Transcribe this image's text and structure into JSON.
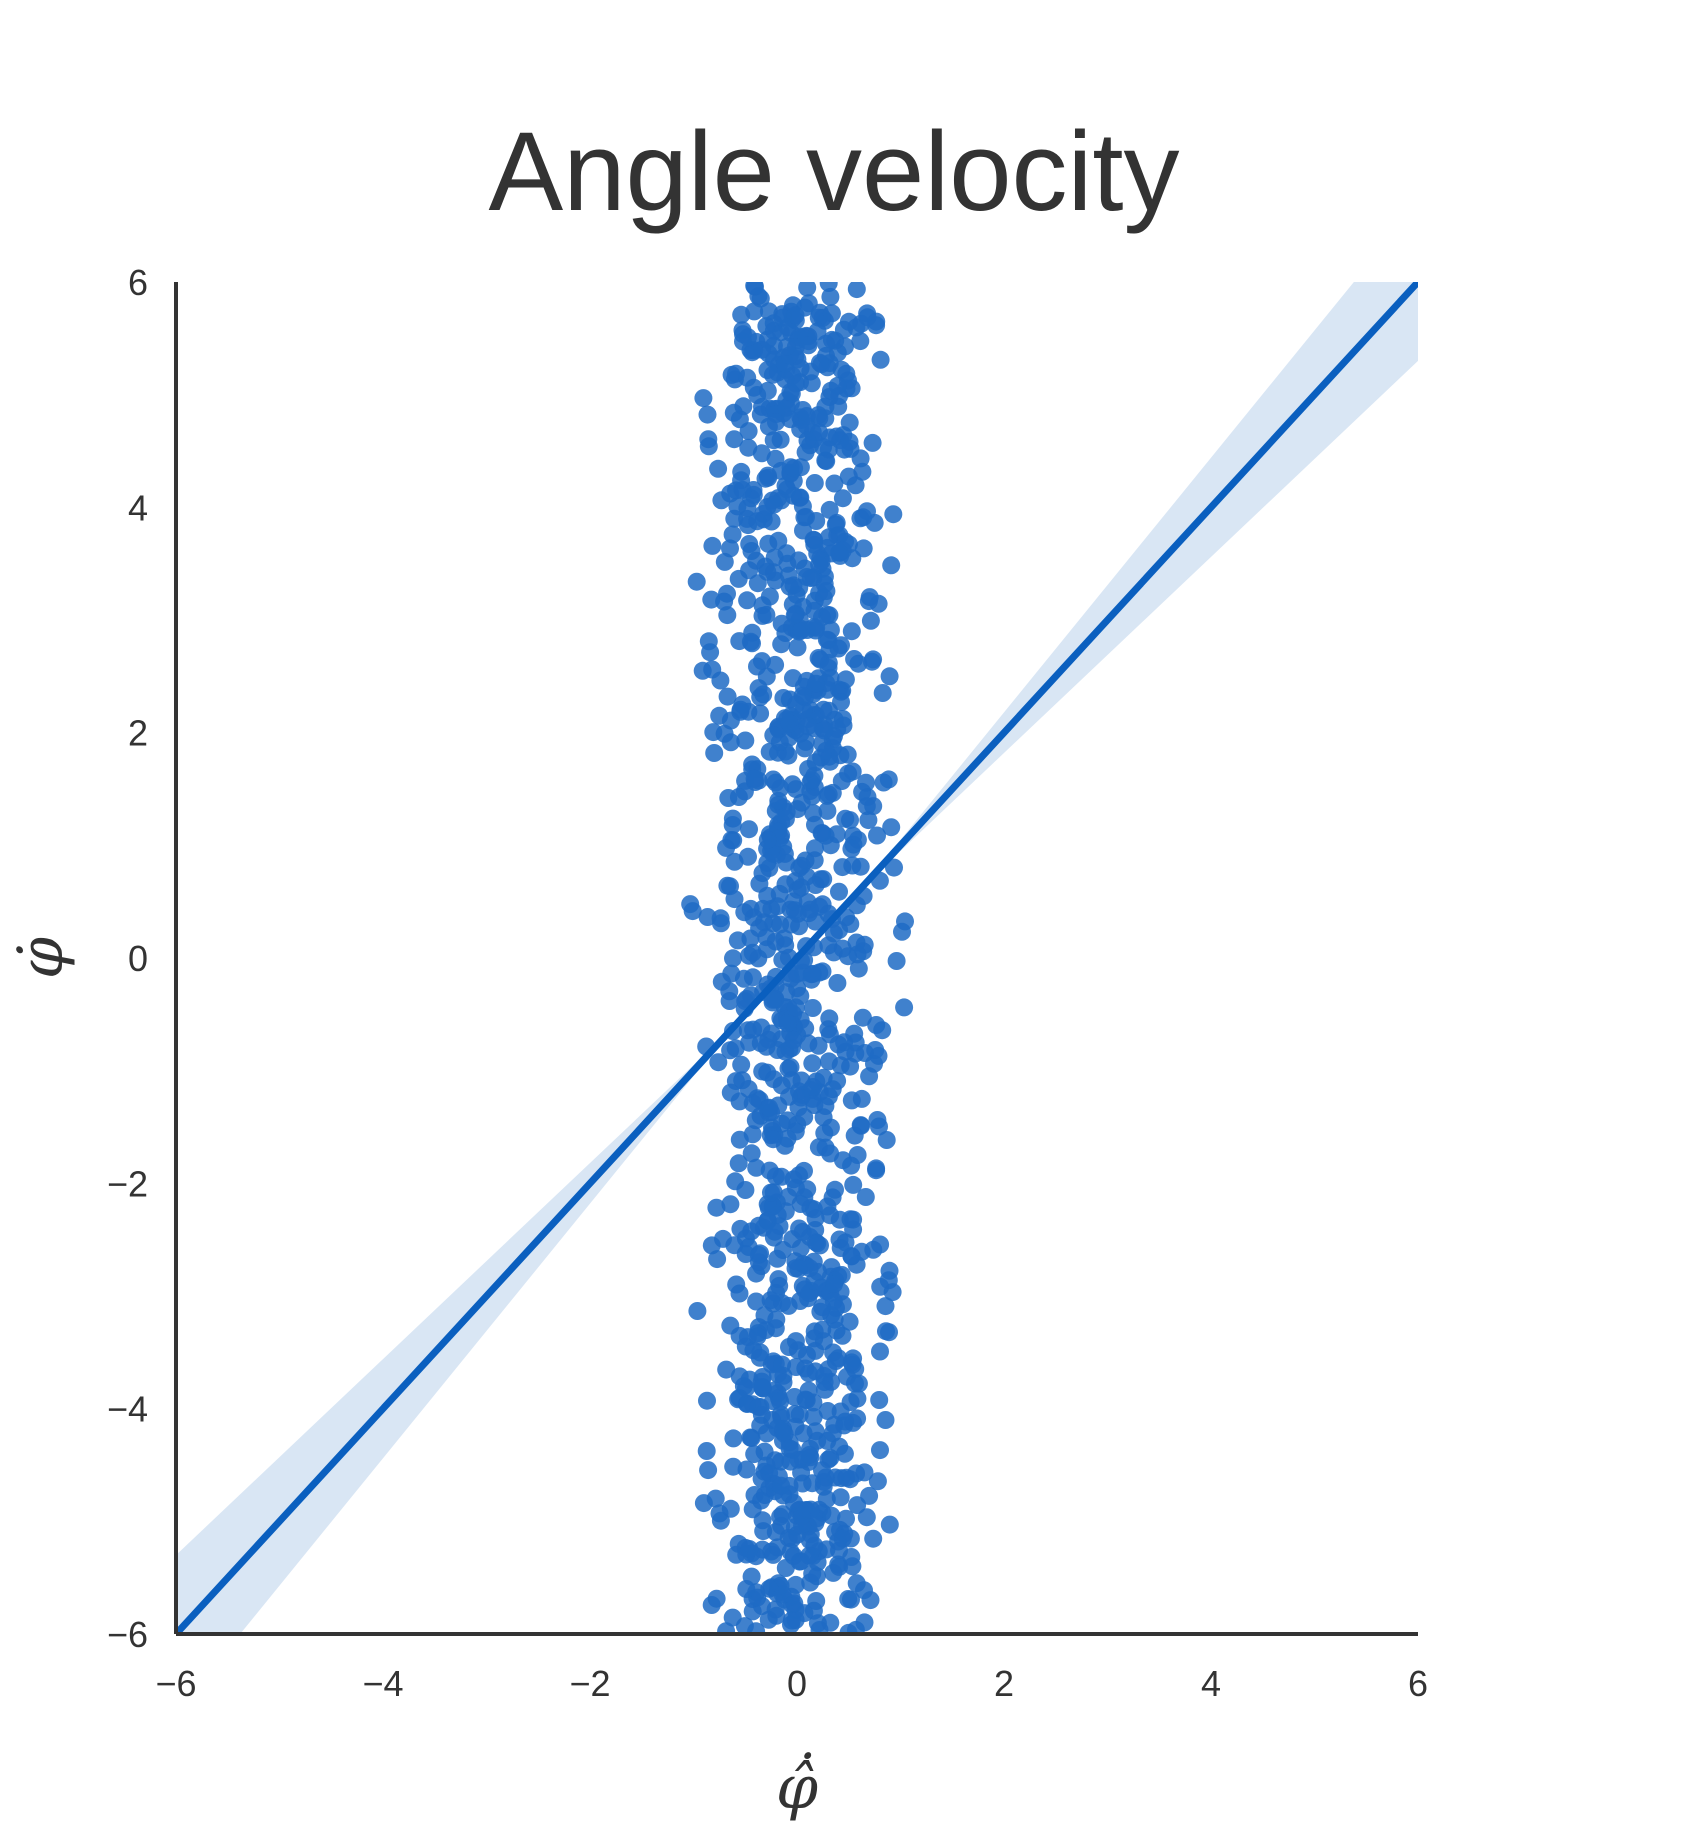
{
  "chart_data": {
    "type": "scatter",
    "title": "Angle velocity",
    "xlabel": "φ̂̇",
    "ylabel": "φ̇",
    "xlim": [
      -6,
      6
    ],
    "ylim": [
      -6,
      6
    ],
    "x_ticks": [
      "−6",
      "−4",
      "−2",
      "0",
      "2",
      "4",
      "6"
    ],
    "y_ticks": [
      "−6",
      "−4",
      "−2",
      "0",
      "2",
      "4",
      "6"
    ],
    "grid": false,
    "legend": "none",
    "colors": {
      "points": "#1f6bc4",
      "line": "#0a5fbf",
      "band": "#cfe0f1",
      "axes": "#333333"
    },
    "scatter_summary": {
      "x_range": [
        -1.2,
        1.2
      ],
      "y_range": [
        -6,
        6
      ],
      "approx_count": 1200
    },
    "regression": {
      "slope": 1.0,
      "intercept": 0.0,
      "ci_band": [
        {
          "x": -6,
          "lo": -6.7,
          "hi": -5.3
        },
        {
          "x": -1,
          "lo": -1.05,
          "hi": -0.95
        },
        {
          "x": 0,
          "lo": -0.02,
          "hi": 0.02
        },
        {
          "x": 1,
          "lo": 0.95,
          "hi": 1.05
        },
        {
          "x": 6,
          "lo": 5.3,
          "hi": 6.7
        }
      ]
    }
  }
}
